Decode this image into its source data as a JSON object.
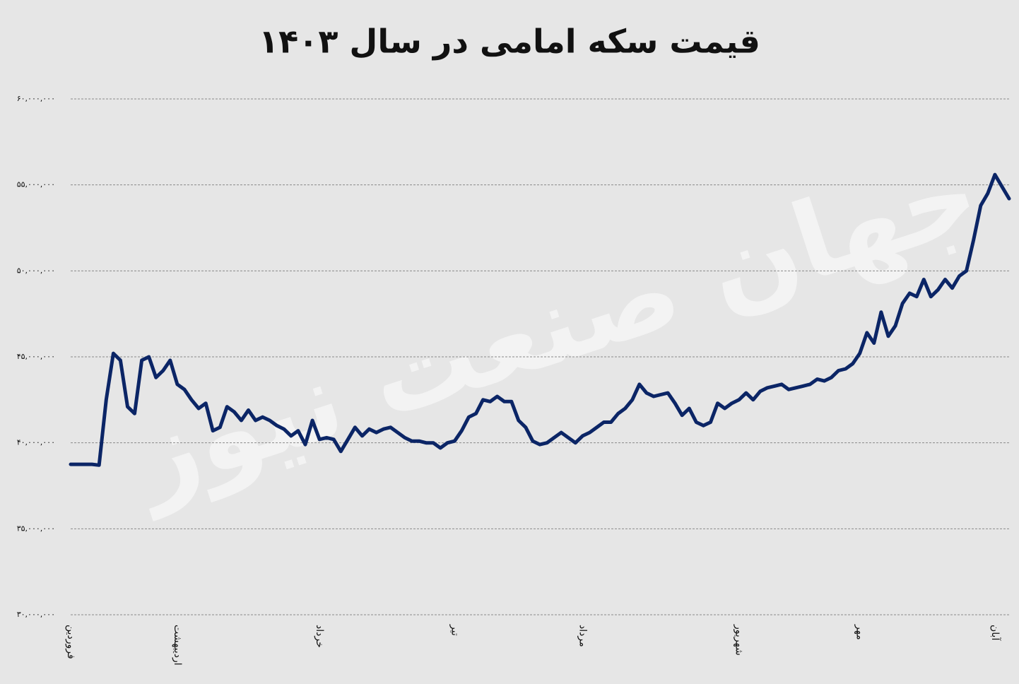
{
  "chart_data": {
    "type": "line",
    "title": "قیمت سکه امامی در سال ۱۴۰۳",
    "watermark": "جهان صنعت نیوز",
    "color": "#0b2566",
    "grid": true,
    "ylim": [
      30000000,
      60000000
    ],
    "yticks": [
      {
        "value": 30000000,
        "label": "۳۰,۰۰۰,۰۰۰"
      },
      {
        "value": 35000000,
        "label": "۳۵,۰۰۰,۰۰۰"
      },
      {
        "value": 40000000,
        "label": "۴۰,۰۰۰,۰۰۰"
      },
      {
        "value": 45000000,
        "label": "۴۵,۰۰۰,۰۰۰"
      },
      {
        "value": 50000000,
        "label": "۵۰,۰۰۰,۰۰۰"
      },
      {
        "value": 55000000,
        "label": "۵۵,۰۰۰,۰۰۰"
      },
      {
        "value": 60000000,
        "label": "۶۰,۰۰۰,۰۰۰"
      }
    ],
    "categories": [
      "فروردین",
      null,
      null,
      null,
      null,
      null,
      null,
      null,
      null,
      null,
      null,
      null,
      null,
      null,
      null,
      "اردیبهشت",
      null,
      null,
      null,
      null,
      null,
      null,
      null,
      null,
      null,
      null,
      null,
      null,
      null,
      null,
      null,
      null,
      null,
      null,
      null,
      "خرداد",
      null,
      null,
      null,
      null,
      null,
      null,
      null,
      null,
      null,
      null,
      null,
      null,
      null,
      null,
      null,
      null,
      null,
      null,
      "تیر",
      null,
      null,
      null,
      null,
      null,
      null,
      null,
      null,
      null,
      null,
      null,
      null,
      null,
      null,
      null,
      null,
      null,
      "مرداد",
      null,
      null,
      null,
      null,
      null,
      null,
      null,
      null,
      null,
      null,
      null,
      null,
      null,
      null,
      null,
      null,
      null,
      null,
      null,
      null,
      null,
      "شهریور",
      null,
      null,
      null,
      null,
      null,
      null,
      null,
      null,
      null,
      null,
      null,
      null,
      null,
      null,
      null,
      null,
      "مهر",
      null,
      null,
      null,
      null,
      null,
      null,
      null,
      null,
      null,
      null,
      null,
      null,
      null,
      null,
      null,
      null,
      null,
      null,
      "آبان",
      null,
      null
    ],
    "values": [
      38750000,
      38750000,
      38750000,
      38750000,
      38700000,
      42500000,
      45200000,
      44800000,
      42100000,
      41700000,
      44800000,
      45000000,
      43800000,
      44200000,
      44800000,
      43400000,
      43100000,
      42500000,
      42000000,
      42300000,
      40700000,
      40900000,
      42100000,
      41800000,
      41300000,
      41900000,
      41300000,
      41500000,
      41300000,
      41000000,
      40800000,
      40400000,
      40700000,
      39900000,
      41300000,
      40200000,
      40300000,
      40200000,
      39500000,
      40200000,
      40900000,
      40400000,
      40800000,
      40600000,
      40800000,
      40900000,
      40600000,
      40300000,
      40100000,
      40100000,
      40000000,
      40000000,
      39700000,
      40000000,
      40100000,
      40700000,
      41500000,
      41700000,
      42500000,
      42400000,
      42700000,
      42400000,
      42400000,
      41300000,
      40900000,
      40100000,
      39900000,
      40000000,
      40300000,
      40600000,
      40300000,
      40000000,
      40400000,
      40600000,
      40900000,
      41200000,
      41200000,
      41700000,
      42000000,
      42500000,
      43400000,
      42900000,
      42700000,
      42800000,
      42900000,
      42300000,
      41600000,
      42000000,
      41200000,
      41000000,
      41200000,
      42300000,
      42000000,
      42300000,
      42500000,
      42900000,
      42500000,
      43000000,
      43200000,
      43300000,
      43400000,
      43100000,
      43200000,
      43300000,
      43400000,
      43700000,
      43600000,
      43800000,
      44200000,
      44300000,
      44600000,
      45200000,
      46400000,
      45800000,
      47600000,
      46200000,
      46800000,
      48100000,
      48700000,
      48500000,
      49500000,
      48500000,
      48900000,
      49500000,
      49000000,
      49700000,
      50000000,
      51800000,
      53800000,
      54500000,
      55600000,
      54900000,
      54200000
    ]
  }
}
